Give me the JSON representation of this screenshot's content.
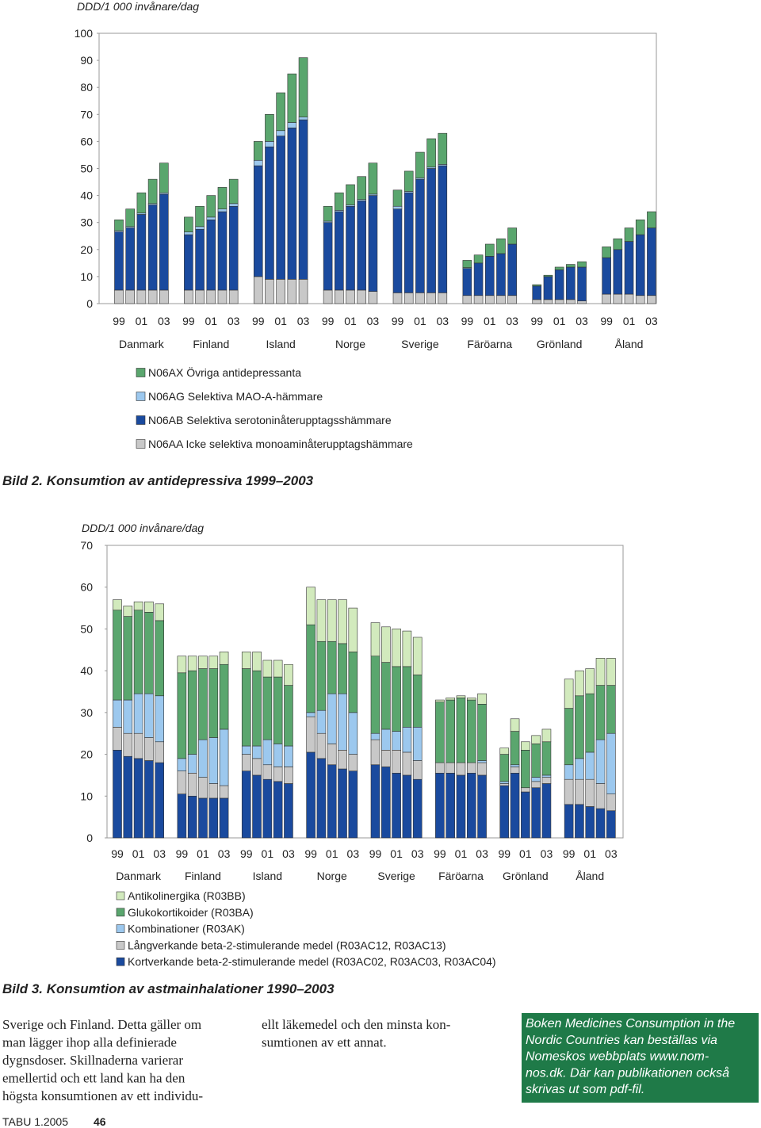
{
  "chart_data": [
    {
      "type": "bar",
      "stacked": true,
      "title": "Bild 2. Konsumtion av antidepressiva 1999–2003",
      "ylabel": "DDD/1 000 invånare/dag",
      "groups": [
        "Danmark",
        "Finland",
        "Island",
        "Norge",
        "Sverige",
        "Färöarna",
        "Grönland",
        "Åland"
      ],
      "categories": [
        "99",
        null,
        "01",
        null,
        "03",
        "99",
        null,
        "01",
        null,
        "03",
        "99",
        null,
        "01",
        null,
        "03",
        "99",
        null,
        "01",
        null,
        "03",
        "99",
        null,
        "01",
        null,
        "03",
        "99",
        null,
        "01",
        null,
        "03",
        "99",
        null,
        "01",
        null,
        "03",
        "99",
        null,
        "01",
        null,
        "03"
      ],
      "ylim": [
        0,
        100
      ],
      "yticks": [
        0,
        10,
        20,
        30,
        40,
        50,
        60,
        70,
        80,
        90,
        100
      ],
      "grid": false,
      "series": [
        {
          "name": "N06AA Icke selektiva monoaminåterupptagshämmare",
          "color": "#c8c8c8",
          "values": [
            5,
            5,
            5,
            5,
            5,
            5,
            5,
            5,
            5,
            5,
            10,
            9,
            9,
            9,
            9,
            5,
            5,
            5,
            5,
            4.5,
            4,
            4,
            4,
            4,
            4,
            3,
            3,
            3,
            3,
            3,
            1.5,
            1.5,
            1.5,
            1.5,
            1,
            3.5,
            3.5,
            3.5,
            3,
            3
          ]
        },
        {
          "name": "N06AB Selektiva serotoninåterupptagsshämmare",
          "color": "#1a4a9e",
          "values": [
            21.5,
            23,
            28,
            31.5,
            35.5,
            20.5,
            22.5,
            26,
            29,
            31,
            41,
            49,
            53,
            56,
            59,
            25,
            29,
            31,
            33,
            35.5,
            31,
            37,
            42,
            46,
            47,
            10,
            12,
            14.5,
            15.5,
            19,
            5,
            8.5,
            11,
            12,
            12.5,
            13.5,
            16.5,
            19.5,
            22.5,
            25
          ]
        },
        {
          "name": "N06AG Selektiva MAO-A-hämmare",
          "color": "#9cc8ee",
          "values": [
            0.5,
            0.5,
            0.5,
            0.5,
            0.5,
            1,
            1,
            1,
            1,
            1,
            2,
            2,
            2,
            2,
            1,
            0.5,
            0.5,
            0.5,
            0.5,
            0.5,
            1,
            0.5,
            0.5,
            0.5,
            0.5,
            0.3,
            0,
            0,
            0,
            0,
            0,
            0,
            0,
            0,
            0,
            0,
            0,
            0,
            0,
            0
          ]
        },
        {
          "name": "N06AX Övriga antidepressanta",
          "color": "#5aa66e",
          "values": [
            4,
            6.5,
            7.5,
            9,
            11,
            5.5,
            7.5,
            8,
            8,
            9,
            7,
            10,
            14,
            18,
            22,
            5.5,
            6.5,
            7.5,
            8.5,
            11.5,
            6,
            7.5,
            9.5,
            10.5,
            11.5,
            2.7,
            3,
            4.5,
            5.5,
            6,
            0.5,
            0.5,
            1,
            1,
            2,
            4,
            4,
            5,
            5.5,
            6
          ]
        }
      ]
    },
    {
      "type": "bar",
      "stacked": true,
      "title": "Bild 3. Konsumtion av astmainhalationer 1990–2003",
      "ylabel": "DDD/1 000 invånare/dag",
      "groups": [
        "Danmark",
        "Finland",
        "Island",
        "Norge",
        "Sverige",
        "Färöarna",
        "Grönland",
        "Åland"
      ],
      "categories": [
        "99",
        null,
        "01",
        null,
        "03",
        "99",
        null,
        "01",
        null,
        "03",
        "99",
        null,
        "01",
        null,
        "03",
        "99",
        null,
        "01",
        null,
        "03",
        "99",
        null,
        "01",
        null,
        "03",
        "99",
        null,
        "01",
        null,
        "03",
        "99",
        null,
        "01",
        null,
        "03",
        "99",
        null,
        "01",
        null,
        "03"
      ],
      "ylim": [
        0,
        70
      ],
      "yticks": [
        0,
        10,
        20,
        30,
        40,
        50,
        60,
        70
      ],
      "grid": false,
      "series": [
        {
          "name": "Kortverkande beta-2-stimulerande medel (R03AC02, R03AC03, R03AC04)",
          "color": "#1a4a9e",
          "values": [
            21,
            19.5,
            19,
            18.5,
            18,
            10.5,
            10,
            9.5,
            9.5,
            9.5,
            16,
            15,
            14,
            13.5,
            13,
            20.5,
            19,
            17.5,
            16.5,
            16,
            17.5,
            17,
            15.5,
            15,
            14,
            15.5,
            15.5,
            15,
            15.5,
            15,
            12.5,
            15.5,
            11,
            12,
            13,
            8,
            8,
            7.5,
            7,
            6.5
          ]
        },
        {
          "name": "Långverkande beta-2-stimulerande medel (R03AC12, R03AC13)",
          "color": "#c8c8c8",
          "values": [
            5.5,
            5.5,
            6,
            5.5,
            5,
            5.5,
            5.5,
            5,
            3.5,
            3,
            4,
            4,
            3.5,
            3.5,
            4,
            8.5,
            6,
            5,
            4.5,
            4,
            6,
            4,
            5.5,
            5.5,
            4.5,
            2.5,
            2.5,
            3,
            2.5,
            3,
            0.5,
            1.5,
            1,
            1.5,
            1.5,
            6,
            6,
            6.5,
            6,
            4
          ]
        },
        {
          "name": "Kombinationer (R03AK)",
          "color": "#9cc8ee",
          "values": [
            6.5,
            8,
            9.5,
            10.5,
            11,
            3,
            4.5,
            9,
            11,
            13.5,
            2,
            3,
            6,
            5.5,
            5,
            1,
            5.5,
            12,
            13.5,
            10,
            1.5,
            5,
            4.5,
            6,
            8,
            0,
            0,
            0,
            0,
            0.5,
            0.5,
            0.5,
            0,
            1,
            0.5,
            3.5,
            5,
            6.5,
            10.5,
            14.5
          ]
        },
        {
          "name": "Glukokortikoider (R03BA)",
          "color": "#5aa66e",
          "values": [
            21.5,
            20,
            20,
            19.5,
            18,
            20.5,
            20,
            17,
            16.5,
            15.5,
            18.5,
            18,
            15,
            16,
            14.5,
            21,
            16.5,
            12.5,
            12,
            14.5,
            18.5,
            16,
            15.5,
            14.5,
            12.5,
            14.5,
            15,
            15.5,
            15,
            13.5,
            6.5,
            8,
            9,
            8,
            8,
            13.5,
            15,
            14,
            13,
            11.5
          ]
        },
        {
          "name": "Antikolinergika (R03BB)",
          "color": "#d2eabd",
          "values": [
            2.5,
            2.5,
            2,
            2.5,
            4,
            4,
            3.5,
            3,
            3,
            3,
            4,
            4.5,
            4,
            4,
            5,
            9,
            10,
            10,
            10.5,
            10.5,
            8,
            8.5,
            9,
            8.5,
            9,
            0.5,
            0.5,
            0.5,
            0.5,
            2.5,
            1.5,
            3,
            2,
            2,
            3,
            7,
            6,
            6,
            6.5,
            6.5
          ]
        }
      ]
    }
  ],
  "body_text": {
    "columns": [
      [
        "Sverige och Finland. Detta gäller om",
        "man lägger ihop alla definierade",
        "dygnsdoser. Skillnaderna varierar",
        "emellertid och ett land kan ha den",
        "högsta konsumtionen av ett individu-"
      ],
      [
        "ellt läkemedel och den minsta kon-",
        "sumtionen av ett annat."
      ]
    ],
    "box": [
      "Boken Medicines Consumption in the",
      "Nordic Countries  kan beställas via",
      "Nomeskos webbplats www.nom-",
      "nos.dk. Där kan publikationen också",
      "skrivas ut som pdf-fil."
    ]
  },
  "footer": {
    "publication": "TABU 1.2005",
    "page": "46"
  }
}
